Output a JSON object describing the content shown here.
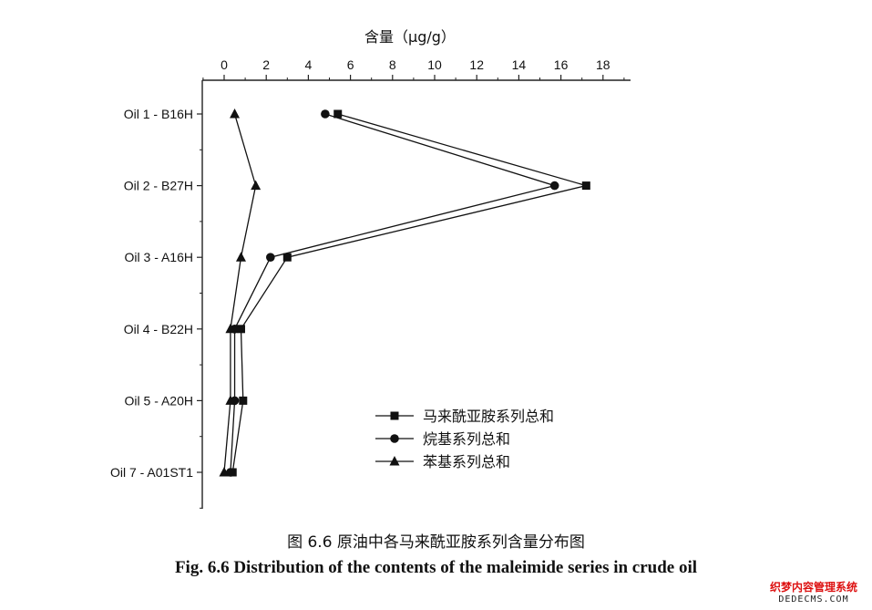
{
  "chart_data": {
    "type": "line",
    "orientation": "horizontal-value-axis",
    "title": "",
    "xlabel": "含量（μg/g）",
    "ylabel": "",
    "xlim": [
      -1,
      19
    ],
    "xticks": [
      0,
      2,
      4,
      6,
      8,
      10,
      12,
      14,
      16,
      18
    ],
    "categories": [
      "Oil 1 - B16H",
      "Oil 2 - B27H",
      "Oil 3 - A16H",
      "Oil 4 - B22H",
      "Oil 5 - A20H",
      "Oil 7 - A01ST1"
    ],
    "series": [
      {
        "name": "马来酰亚胺系列总和",
        "marker": "square",
        "values": [
          5.4,
          17.2,
          3.0,
          0.8,
          0.9,
          0.4
        ]
      },
      {
        "name": "烷基系列总和",
        "marker": "circle",
        "values": [
          4.8,
          15.7,
          2.2,
          0.5,
          0.5,
          0.3
        ]
      },
      {
        "name": "苯基系列总和",
        "marker": "triangle",
        "values": [
          0.5,
          1.5,
          0.8,
          0.3,
          0.3,
          0.0
        ]
      }
    ],
    "legend_position": "lower-right",
    "grid": false
  },
  "caption_cn": "图 6.6 原油中各马来酰亚胺系列含量分布图",
  "caption_en": "Fig. 6.6 Distribution of the contents of the maleimide series in crude oil",
  "watermark": {
    "line1": "织梦内容管理系统",
    "line2": "DEDECMS.COM"
  }
}
